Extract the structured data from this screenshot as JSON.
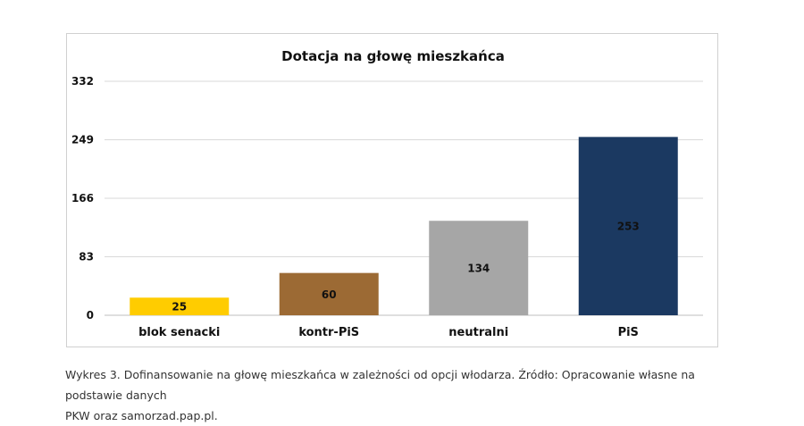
{
  "chart_data": {
    "type": "bar",
    "title": "Dotacja na głowę mieszkańca",
    "categories": [
      "blok senacki",
      "kontr-PiS",
      "neutralni",
      "PiS"
    ],
    "values": [
      25,
      60,
      134,
      253
    ],
    "value_labels": [
      "25",
      "60",
      "134",
      "253"
    ],
    "bar_colors": [
      "#FFCC00",
      "#9C6A34",
      "#A6A6A6",
      "#1B3961"
    ],
    "yticks": [
      0,
      83,
      166,
      249,
      332
    ],
    "ylim": [
      0,
      332
    ],
    "grid": true,
    "legend": "none"
  },
  "caption": {
    "line1": "Wykres 3. Dofinansowanie na głowę mieszkańca w zależności od opcji włodarza. Źródło: Opracowanie własne na podstawie danych",
    "line2": "PKW oraz samorzad.pap.pl."
  }
}
